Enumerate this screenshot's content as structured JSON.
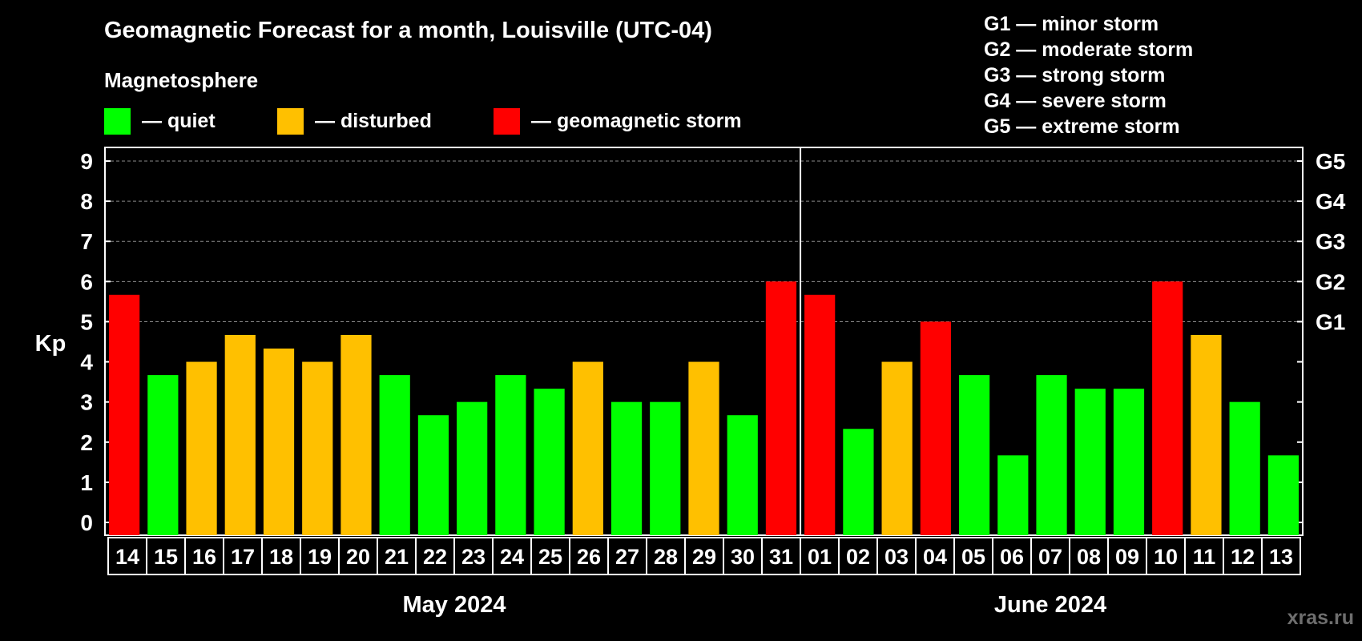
{
  "header": {
    "title": "Geomagnetic Forecast for a month, Louisville (UTC-04)",
    "subtitle": "Magnetosphere"
  },
  "legend": [
    {
      "label": "— quiet",
      "color": "#00ff00"
    },
    {
      "label": "— disturbed",
      "color": "#ffc000"
    },
    {
      "label": "— geomagnetic storm",
      "color": "#ff0000"
    }
  ],
  "g_scale": [
    "G1 — minor storm",
    "G2 — moderate storm",
    "G3 — strong storm",
    "G4 — severe storm",
    "G5 — extreme storm"
  ],
  "watermark": "xras.ru",
  "chart_data": {
    "type": "bar",
    "title": "Geomagnetic Forecast for a month, Louisville (UTC-04)",
    "ylabel": "Kp",
    "ylim": [
      0,
      9
    ],
    "yticks": [
      "0",
      "1",
      "2",
      "3",
      "4",
      "5",
      "6",
      "7",
      "8",
      "9"
    ],
    "right_ticks": [
      {
        "kp": 5,
        "label": "G1"
      },
      {
        "kp": 6,
        "label": "G2"
      },
      {
        "kp": 7,
        "label": "G3"
      },
      {
        "kp": 8,
        "label": "G4"
      },
      {
        "kp": 9,
        "label": "G5"
      }
    ],
    "months": [
      {
        "label": "May 2024",
        "count": 18
      },
      {
        "label": "June 2024",
        "count": 13
      }
    ],
    "categories": [
      "14",
      "15",
      "16",
      "17",
      "18",
      "19",
      "20",
      "21",
      "22",
      "23",
      "24",
      "25",
      "26",
      "27",
      "28",
      "29",
      "30",
      "31",
      "01",
      "02",
      "03",
      "04",
      "05",
      "06",
      "07",
      "08",
      "09",
      "10",
      "11",
      "12",
      "13"
    ],
    "values": [
      5.67,
      3.67,
      4.0,
      4.67,
      4.33,
      4.0,
      4.67,
      3.67,
      2.67,
      3.0,
      3.67,
      3.33,
      4.0,
      3.0,
      3.0,
      4.0,
      2.67,
      6.0,
      5.67,
      2.33,
      4.0,
      5.0,
      3.67,
      1.67,
      3.67,
      3.33,
      3.33,
      6.0,
      4.67,
      3.0,
      1.67
    ],
    "levels": [
      "storm",
      "quiet",
      "disturbed",
      "disturbed",
      "disturbed",
      "disturbed",
      "disturbed",
      "quiet",
      "quiet",
      "quiet",
      "quiet",
      "quiet",
      "disturbed",
      "quiet",
      "quiet",
      "disturbed",
      "quiet",
      "storm",
      "storm",
      "quiet",
      "disturbed",
      "storm",
      "quiet",
      "quiet",
      "quiet",
      "quiet",
      "quiet",
      "storm",
      "disturbed",
      "quiet",
      "quiet"
    ],
    "colors": {
      "quiet": "#00ff00",
      "disturbed": "#ffc000",
      "storm": "#ff0000"
    }
  }
}
